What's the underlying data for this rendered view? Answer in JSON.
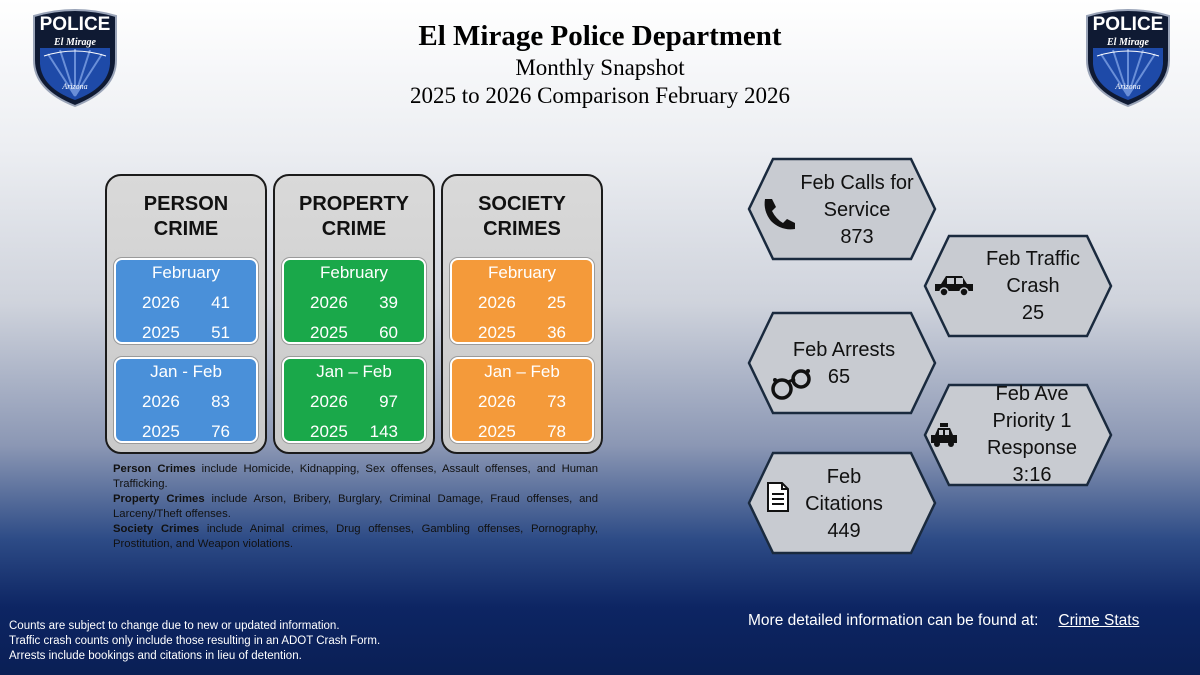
{
  "header": {
    "title": "El Mirage Police Department",
    "subtitle": "Monthly Snapshot",
    "comparison": "2025 to 2026 Comparison February 2026"
  },
  "logo": {
    "top": "POLICE",
    "middle": "El Mirage",
    "bottom": "Arizona"
  },
  "cards": [
    {
      "title1": "PERSON",
      "title2": "CRIME",
      "color": "#4a90d9",
      "month_label": "February",
      "month_2026": "41",
      "month_2025": "51",
      "ytd_label": "Jan - Feb",
      "ytd_2026": "83",
      "ytd_2025": "76"
    },
    {
      "title1": "PROPERTY",
      "title2": "CRIME",
      "color": "#1aa84a",
      "month_label": "February",
      "month_2026": "39",
      "month_2025": "60",
      "ytd_label": "Jan – Feb",
      "ytd_2026": "97",
      "ytd_2025": "143"
    },
    {
      "title1": "SOCIETY",
      "title2": "CRIMES",
      "color": "#f49a3a",
      "month_label": "February",
      "month_2026": "25",
      "month_2025": "36",
      "ytd_label": "Jan – Feb",
      "ytd_2026": "73",
      "ytd_2025": "78"
    }
  ],
  "years": {
    "current": "2026",
    "previous": "2025"
  },
  "notes": [
    {
      "bold": "Person Crimes",
      "text": " include Homicide, Kidnapping, Sex offenses, Assault offenses, and Human Trafficking."
    },
    {
      "bold": "Property Crimes",
      "text": " include Arson, Bribery, Burglary, Criminal Damage, Fraud offenses, and Larceny/Theft offenses."
    },
    {
      "bold": "Society Crimes",
      "text": " include Animal crimes, Drug offenses, Gambling offenses, Pornography, Prostitution, and Weapon violations."
    }
  ],
  "stats": {
    "calls": {
      "line1": "Feb Calls for",
      "line2": "Service",
      "value": "873",
      "icon": "phone-icon"
    },
    "crash": {
      "line1": "Feb Traffic",
      "line2": "Crash",
      "value": "25",
      "icon": "car-icon"
    },
    "arrests": {
      "line1": "Feb Arrests",
      "value": "65",
      "icon": "handcuffs-icon"
    },
    "response": {
      "line1": "Feb Ave",
      "line2": "Priority 1",
      "line3": "Response",
      "value": "3:16",
      "icon": "police-car-icon"
    },
    "citations": {
      "line1": "Feb",
      "line2": "Citations",
      "value": "449",
      "icon": "document-icon"
    }
  },
  "footer": {
    "disclaimers": [
      "Counts are subject to change due to new or updated information.",
      "Traffic crash counts only include those resulting in an ADOT Crash Form.",
      "Arrests include bookings and citations in lieu of detention."
    ],
    "more_info": "More detailed information can be found at:",
    "link": "Crime Stats"
  }
}
